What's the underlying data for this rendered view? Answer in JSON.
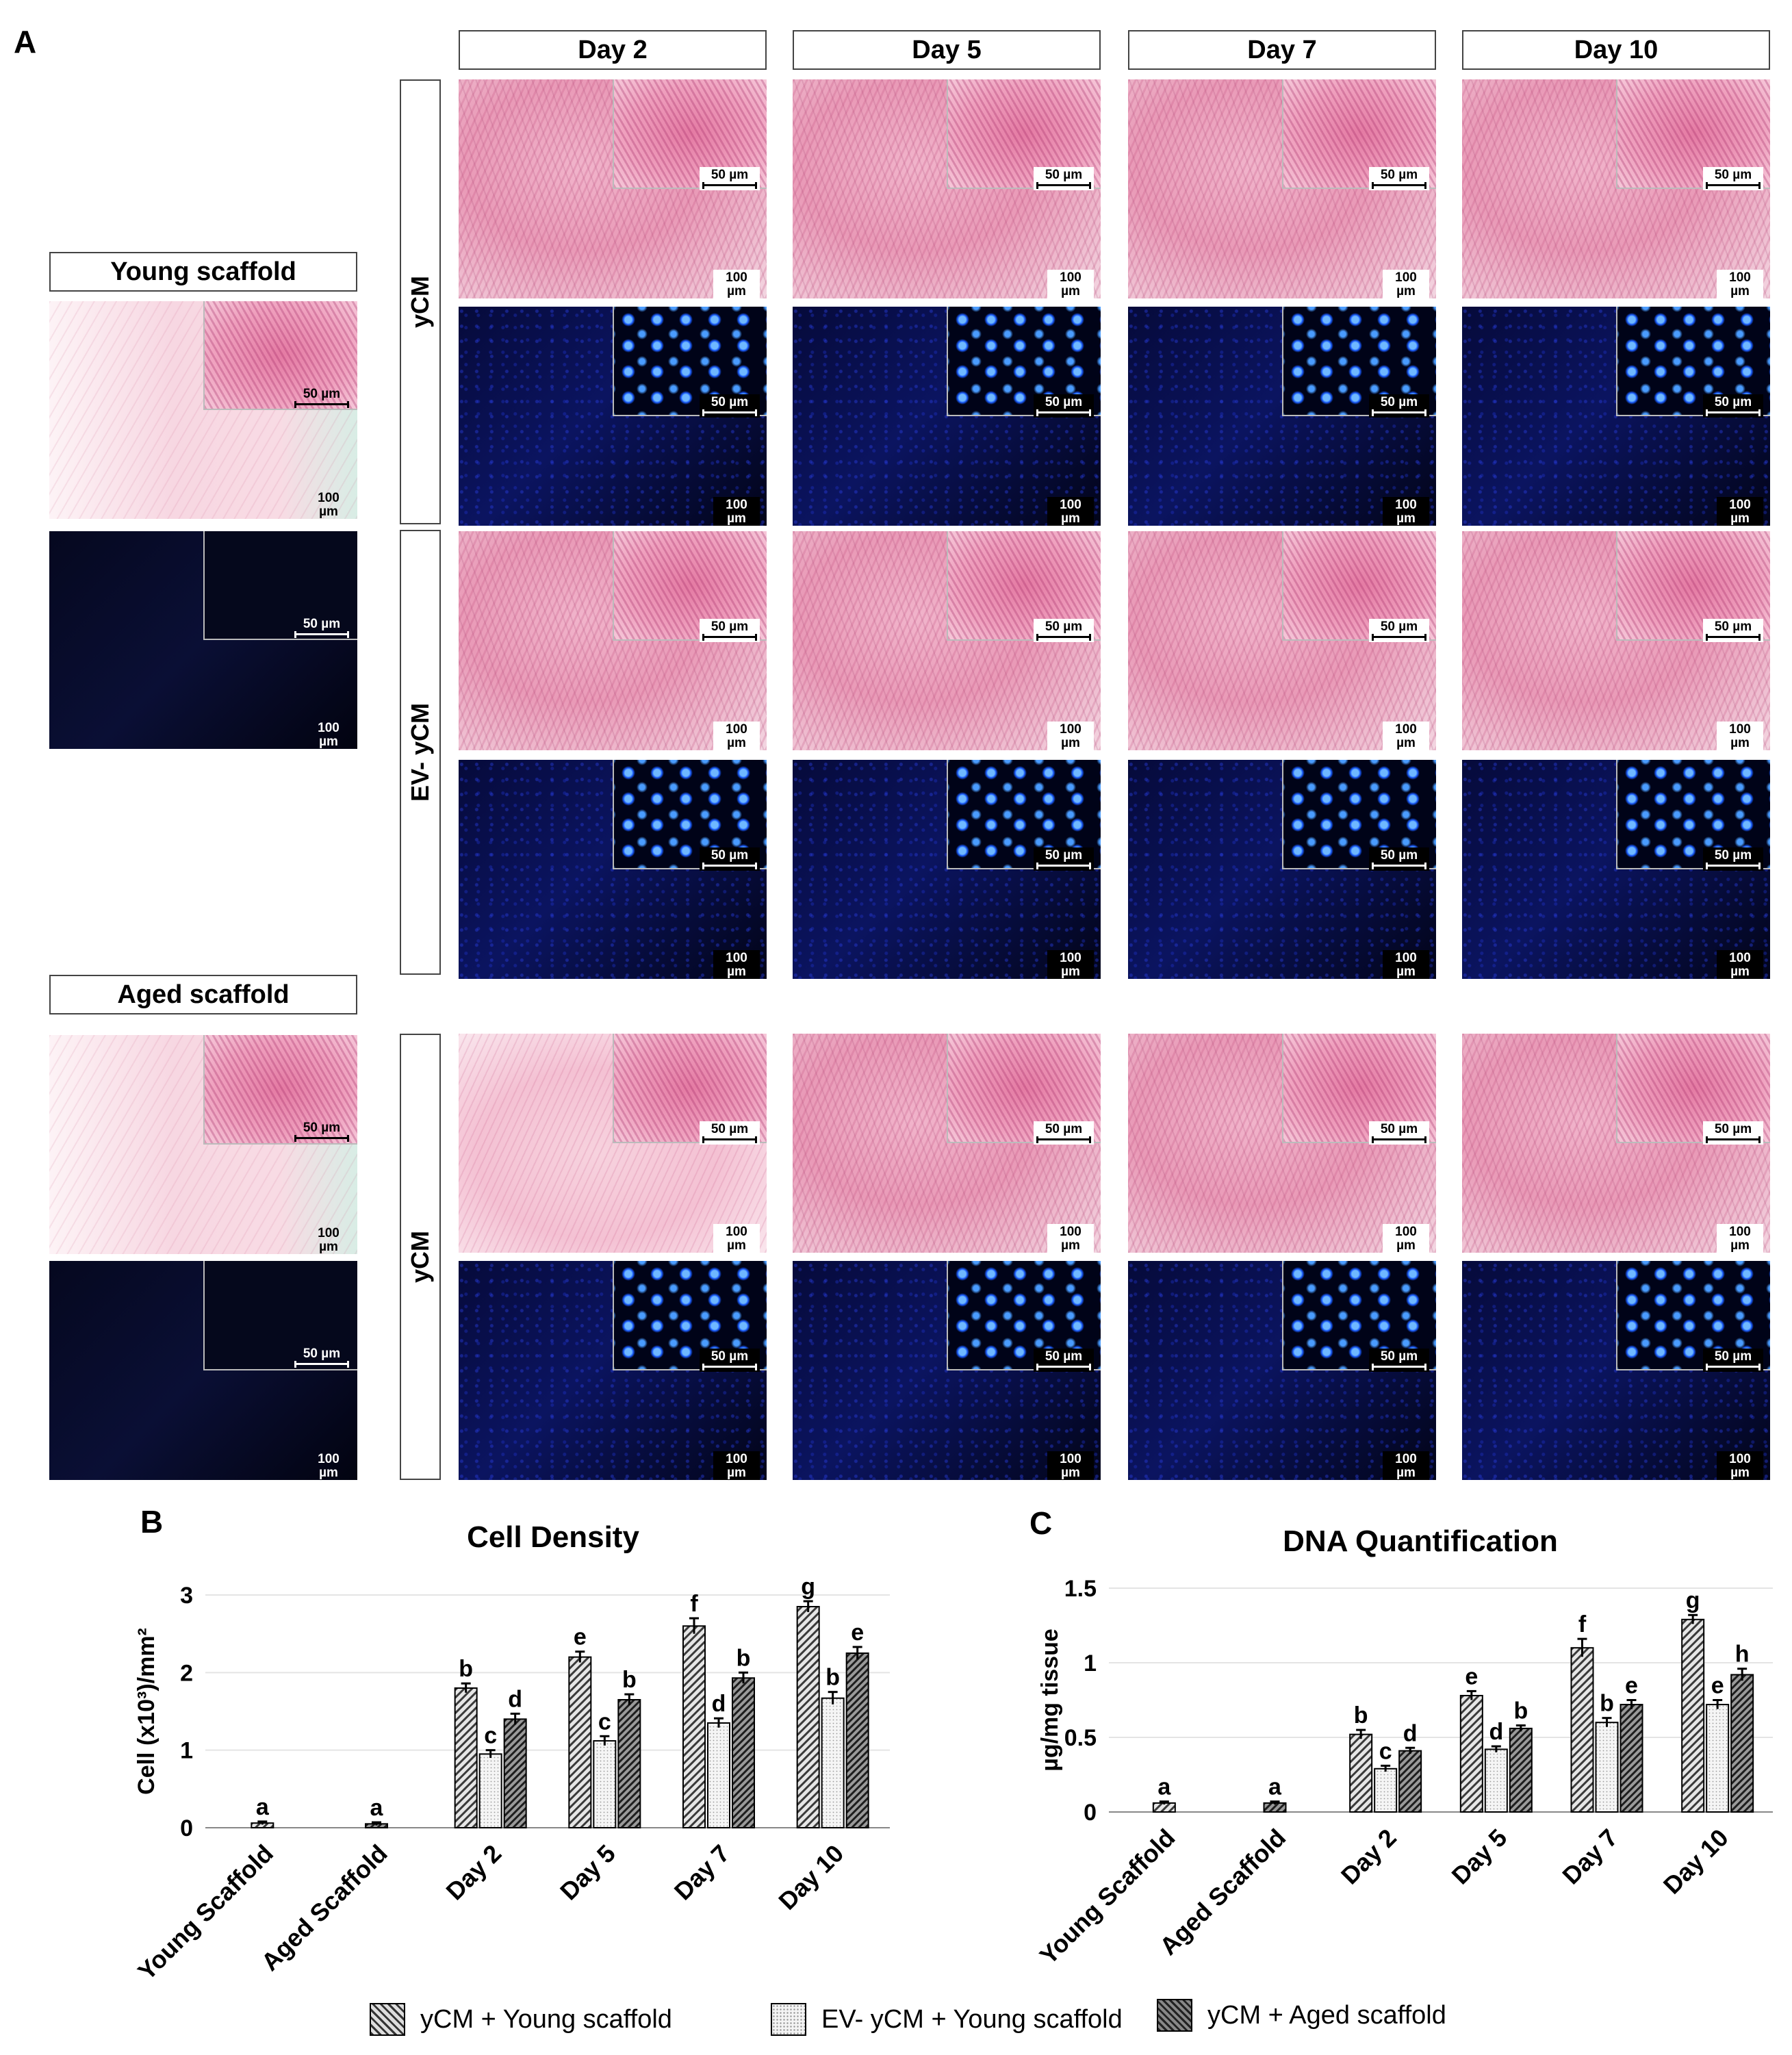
{
  "panel_labels": {
    "a": "A",
    "b": "B",
    "c": "C"
  },
  "columns": [
    "Day 2",
    "Day 5",
    "Day 7",
    "Day 10"
  ],
  "controls": {
    "young": "Young scaffold",
    "aged": "Aged scaffold"
  },
  "row_labels": {
    "r1": "yCM",
    "r2": "EV- yCM",
    "r3": "yCM"
  },
  "scale": {
    "inset": "50 µm",
    "main": "100 µm"
  },
  "colors": {
    "pattern_ycm": "#555555",
    "pattern_ev": "#cccccc",
    "pattern_aged": "#444444"
  },
  "legend": [
    "yCM + Young scaffold",
    "EV- yCM +  Young scaffold",
    "yCM + Aged scaffold"
  ],
  "chart_data": [
    {
      "type": "bar",
      "title": "Cell Density",
      "ylabel": "Cell (x10³)/mm²",
      "xlabel": "",
      "ylim": [
        0,
        3
      ],
      "yticks": [
        "0",
        "1",
        "2",
        "3"
      ],
      "categories": [
        "Young Scaffold",
        "Aged Scaffold",
        "Day 2",
        "Day 5",
        "Day 7",
        "Day 10"
      ],
      "series": [
        {
          "name": "yCM + Young scaffold",
          "values": [
            0.06,
            null,
            1.8,
            2.2,
            2.6,
            2.85
          ],
          "errors": [
            0.02,
            null,
            0.06,
            0.07,
            0.1,
            0.07
          ],
          "labels": [
            "a",
            "",
            "b",
            "e",
            "f",
            "g"
          ]
        },
        {
          "name": "EV- yCM +  Young scaffold",
          "values": [
            null,
            null,
            0.95,
            1.12,
            1.35,
            1.67
          ],
          "errors": [
            null,
            null,
            0.05,
            0.06,
            0.06,
            0.08
          ],
          "labels": [
            "",
            "",
            "c",
            "c",
            "d",
            "b"
          ]
        },
        {
          "name": "yCM + Aged scaffold",
          "values": [
            null,
            0.05,
            1.4,
            1.65,
            1.93,
            2.25
          ],
          "errors": [
            null,
            0.02,
            0.07,
            0.07,
            0.07,
            0.08
          ],
          "labels": [
            "",
            "a",
            "d",
            "b",
            "b",
            "e"
          ]
        }
      ]
    },
    {
      "type": "bar",
      "title": "DNA Quantification",
      "ylabel": "µg/mg tissue",
      "xlabel": "",
      "ylim": [
        0,
        1.5
      ],
      "yticks": [
        "0",
        "0.5",
        "1",
        "1.5"
      ],
      "categories": [
        "Young Scaffold",
        "Aged Scaffold",
        "Day 2",
        "Day 5",
        "Day 7",
        "Day 10"
      ],
      "series": [
        {
          "name": "yCM + Young scaffold",
          "values": [
            0.06,
            null,
            0.52,
            0.78,
            1.1,
            1.29
          ],
          "errors": [
            0.01,
            null,
            0.03,
            0.03,
            0.06,
            0.03
          ],
          "labels": [
            "a",
            "",
            "b",
            "e",
            "f",
            "g"
          ]
        },
        {
          "name": "EV- yCM +  Young scaffold",
          "values": [
            null,
            null,
            0.29,
            0.42,
            0.6,
            0.72
          ],
          "errors": [
            null,
            null,
            0.02,
            0.02,
            0.03,
            0.03
          ],
          "labels": [
            "",
            "",
            "c",
            "d",
            "b",
            "e"
          ]
        },
        {
          "name": "yCM + Aged scaffold",
          "values": [
            null,
            0.06,
            0.41,
            0.56,
            0.72,
            0.92
          ],
          "errors": [
            null,
            0.01,
            0.02,
            0.02,
            0.03,
            0.04
          ],
          "labels": [
            "",
            "a",
            "d",
            "b",
            "e",
            "h"
          ]
        }
      ]
    }
  ]
}
